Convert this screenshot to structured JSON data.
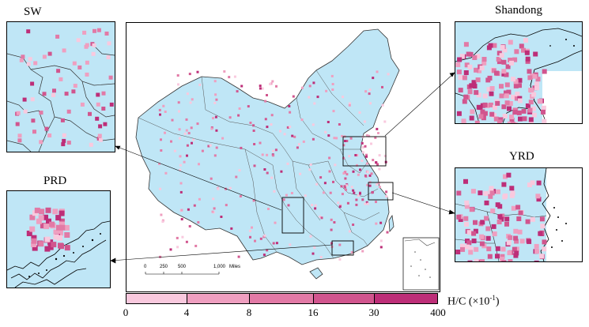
{
  "panels": {
    "sw": {
      "title": "SW"
    },
    "shandong": {
      "title": "Shandong"
    },
    "yrd": {
      "title": "YRD"
    },
    "prd": {
      "title": "PRD"
    }
  },
  "scale_bar": {
    "ticks": [
      "0",
      "250",
      "500",
      "1,000"
    ],
    "unit": "Miles"
  },
  "legend": {
    "title": "H/C (×10",
    "exponent": "-1",
    "title_suffix": ")",
    "breaks": [
      "0",
      "4",
      "8",
      "16",
      "30",
      "400"
    ],
    "colors": [
      "#f9c9de",
      "#ef9fc0",
      "#e27aa6",
      "#d1558e",
      "#bd2e78"
    ]
  },
  "colors": {
    "land": "#bfe6f6",
    "boundary": "#444444",
    "frame": "#000000"
  }
}
